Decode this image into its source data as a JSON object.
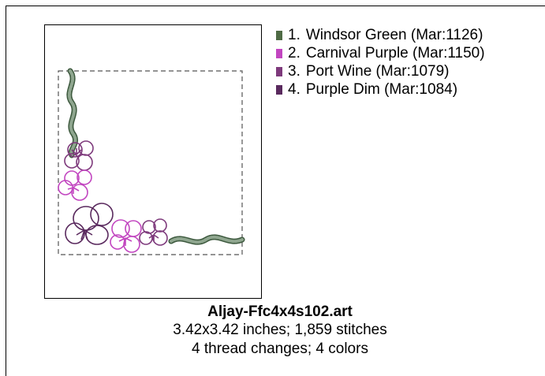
{
  "design": {
    "filename": "Aljay-Ffc4x4s102.art",
    "dimensions_line": "3.42x3.42 inches; 1,859 stitches",
    "threads_line": "4 thread changes; 4 colors"
  },
  "threads": [
    {
      "number": "1.",
      "name": "Windsor Green (Mar:1126)",
      "color": "#4f6b45"
    },
    {
      "number": "2.",
      "name": "Carnival Purple (Mar:1150)",
      "color": "#c246c0"
    },
    {
      "number": "3.",
      "name": "Port Wine (Mar:1079)",
      "color": "#7e3a7c"
    },
    {
      "number": "4.",
      "name": "Purple Dim (Mar:1084)",
      "color": "#5a2a5e"
    }
  ],
  "colors": {
    "green_fill": "#7f9a80",
    "green_stroke": "#3e5a3f"
  }
}
